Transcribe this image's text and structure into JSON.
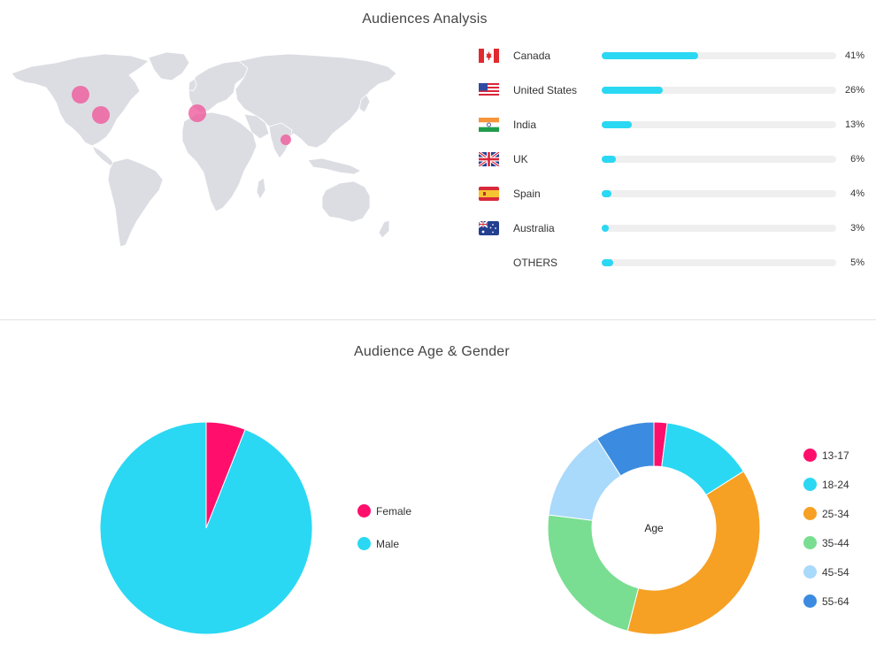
{
  "audiences": {
    "title": "Audiences Analysis",
    "countries": [
      {
        "name": "Canada",
        "percent": 41,
        "label": "41%",
        "flag": "canada-flag"
      },
      {
        "name": "United States",
        "percent": 26,
        "label": "26%",
        "flag": "us-flag"
      },
      {
        "name": "India",
        "percent": 13,
        "label": "13%",
        "flag": "india-flag"
      },
      {
        "name": "UK",
        "percent": 6,
        "label": "6%",
        "flag": "uk-flag"
      },
      {
        "name": "Spain",
        "percent": 4,
        "label": "4%",
        "flag": "spain-flag"
      },
      {
        "name": "Australia",
        "percent": 3,
        "label": "3%",
        "flag": "australia-flag"
      },
      {
        "name": "OTHERS",
        "percent": 5,
        "label": "5%",
        "flag": ""
      }
    ],
    "bar_color": "#2ad8f3",
    "map_bubble_color": "#ef5a9b"
  },
  "age_gender": {
    "title": "Audience Age & Gender",
    "center_label": "Age"
  },
  "chart_data": [
    {
      "type": "pie",
      "categories": [
        "Female",
        "Male"
      ],
      "values": [
        6,
        94
      ],
      "colors": [
        "#ff0f6b",
        "#2ad8f3"
      ],
      "legend": "right"
    },
    {
      "type": "pie",
      "categories": [
        "13-17",
        "18-24",
        "25-34",
        "35-44",
        "45-54",
        "55-64"
      ],
      "values": [
        2,
        14,
        38,
        23,
        14,
        9
      ],
      "colors": [
        "#ff0f6b",
        "#2ad8f3",
        "#f6a024",
        "#79de91",
        "#a9d9fb",
        "#3b8ce0"
      ],
      "legend": "right"
    }
  ]
}
